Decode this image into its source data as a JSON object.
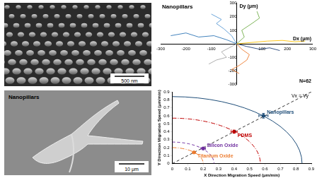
{
  "images": [
    {
      "scale_bar": "500 nm"
    },
    {
      "label": "Nanopillars",
      "scale_bar": "10 μm"
    }
  ],
  "chart_data": [
    {
      "type": "line",
      "title": "Nanopillars",
      "annotation": "N=62",
      "x_label": "Dx (μm)",
      "y_label": "Dy (μm)",
      "xlim": [
        -300,
        300
      ],
      "ylim": [
        -300,
        300
      ],
      "xticks": [
        -300,
        -200,
        -100,
        100,
        200,
        300
      ],
      "yticks": [
        -300,
        -200,
        -100,
        100,
        200,
        300
      ],
      "grid": false,
      "series": [
        {
          "color": "#2e75b6",
          "x": [
            0,
            -40,
            -90,
            -150,
            -200,
            -260
          ],
          "values": [
            0,
            30,
            60,
            50,
            80,
            60
          ]
        },
        {
          "color": "#ed7d31",
          "x": [
            0,
            20,
            50,
            40,
            10,
            -20,
            10
          ],
          "values": [
            0,
            -40,
            -80,
            -120,
            -160,
            -190,
            -220
          ]
        },
        {
          "color": "#ffc000",
          "x": [
            0,
            60,
            120,
            180,
            230,
            270
          ],
          "values": [
            0,
            10,
            20,
            25,
            15,
            20
          ]
        },
        {
          "color": "#70ad47",
          "x": [
            0,
            30,
            20,
            60,
            90,
            80
          ],
          "values": [
            0,
            50,
            100,
            150,
            190,
            240
          ]
        },
        {
          "color": "#a5a5a5",
          "x": [
            0,
            -30,
            -60,
            -40,
            -80,
            -110
          ],
          "values": [
            0,
            -30,
            -60,
            -100,
            -120,
            -150
          ]
        },
        {
          "color": "#264478",
          "x": [
            0,
            40,
            90,
            130,
            170
          ],
          "values": [
            0,
            -20,
            -40,
            -30,
            -50
          ]
        },
        {
          "color": "#5b9bd5",
          "x": [
            0,
            -20,
            -50,
            -80,
            -60,
            -100
          ],
          "values": [
            0,
            60,
            110,
            150,
            180,
            220
          ]
        }
      ]
    },
    {
      "type": "scatter",
      "x_label": "X Direction Migration Speed (μm/min)",
      "y_label": "Y Direction Migration Speed (μm/min)",
      "xlim": [
        0,
        0.9
      ],
      "ylim": [
        0,
        0.9
      ],
      "xticks": [
        0,
        0.1,
        0.2,
        0.3,
        0.4,
        0.5,
        0.6,
        0.7,
        0.8,
        0.9
      ],
      "yticks": [
        0,
        0.1,
        0.2,
        0.3,
        0.4,
        0.5,
        0.6,
        0.7,
        0.8,
        0.9
      ],
      "grid": false,
      "reference": {
        "label": "Vx = Vy",
        "line_style": "dashed"
      },
      "series": [
        {
          "name": "Nanopillars",
          "color": "#1f4e79",
          "marker": "circle",
          "line_style": "solid",
          "x": [
            0.59
          ],
          "values": [
            0.6
          ],
          "x_error": [
            0.03
          ],
          "y_error": [
            0.03
          ],
          "speed": 0.84
        },
        {
          "name": "PDMS",
          "color": "#c00000",
          "marker": "circle",
          "line_style": "dashdot",
          "x": [
            0.4
          ],
          "values": [
            0.4
          ],
          "x_error": [
            0.02
          ],
          "y_error": [
            0.02
          ],
          "speed": 0.57
        },
        {
          "name": "Silicon Oxide",
          "color": "#7030a0",
          "marker": "circle",
          "line_style": "dashed",
          "x": [
            0.2
          ],
          "values": [
            0.19
          ],
          "x_error": [
            0.015
          ],
          "y_error": [
            0.015
          ],
          "speed": 0.27
        },
        {
          "name": "Titanium Oxide",
          "color": "#ed7d31",
          "marker": "circle",
          "line_style": "dashdot",
          "x": [
            0.14
          ],
          "values": [
            0.14
          ],
          "x_error": [
            0.01
          ],
          "y_error": [
            0.01
          ],
          "speed": 0.2
        }
      ]
    }
  ]
}
